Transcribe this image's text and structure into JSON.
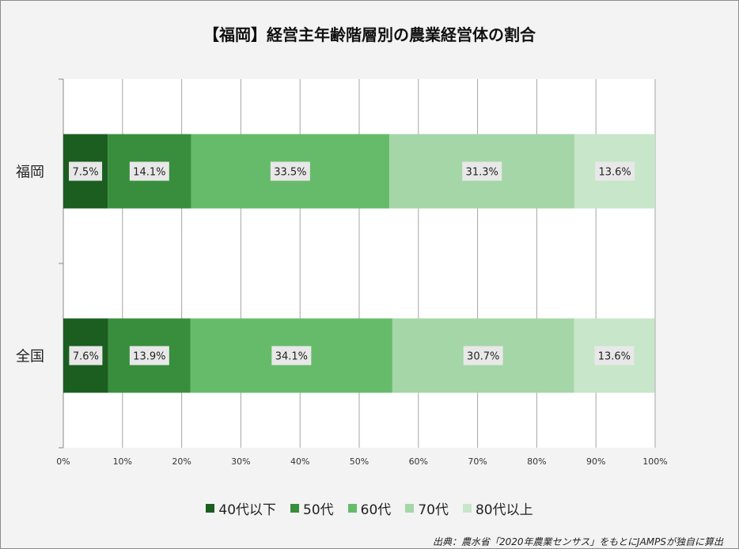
{
  "title": "【福岡】経営主年齢階層別の農業経営体の割合",
  "source": "出典：農水省「2020年農業センサス」をもとにJAMPSが独自に算出",
  "colors": {
    "background": "#f3f3f3",
    "plot": "#ffffff",
    "grid": "#a6a6a6",
    "label_box": "#e8e8e8",
    "series": [
      "#1b5e20",
      "#388e3c",
      "#66bb6a",
      "#a5d6a7",
      "#c8e6c9"
    ]
  },
  "legend": [
    {
      "label": "40代以下",
      "color": "#1b5e20"
    },
    {
      "label": "50代",
      "color": "#388e3c"
    },
    {
      "label": "60代",
      "color": "#66bb6a"
    },
    {
      "label": "70代",
      "color": "#a5d6a7"
    },
    {
      "label": "80代以上",
      "color": "#c8e6c9"
    }
  ],
  "chart_data": {
    "type": "bar",
    "orientation": "horizontal",
    "stacked": "percent",
    "title": "【福岡】経営主年齢階層別の農業経営体の割合",
    "categories": [
      "福岡",
      "全国"
    ],
    "series": [
      {
        "name": "40代以下",
        "values": [
          7.5,
          7.6
        ],
        "labels": [
          "7.5%",
          "7.6%"
        ]
      },
      {
        "name": "50代",
        "values": [
          14.1,
          13.9
        ],
        "labels": [
          "14.1%",
          "13.9%"
        ]
      },
      {
        "name": "60代",
        "values": [
          33.5,
          34.1
        ],
        "labels": [
          "33.5%",
          "34.1%"
        ]
      },
      {
        "name": "70代",
        "values": [
          31.3,
          30.7
        ],
        "labels": [
          "31.3%",
          "30.7%"
        ]
      },
      {
        "name": "80代以上",
        "values": [
          13.6,
          13.6
        ],
        "labels": [
          "13.6%",
          "13.6%"
        ]
      }
    ],
    "xlim": [
      0,
      100
    ],
    "xticks": [
      "0%",
      "10%",
      "20%",
      "30%",
      "40%",
      "50%",
      "60%",
      "70%",
      "80%",
      "90%",
      "100%"
    ],
    "grid": true,
    "legend_position": "bottom"
  }
}
